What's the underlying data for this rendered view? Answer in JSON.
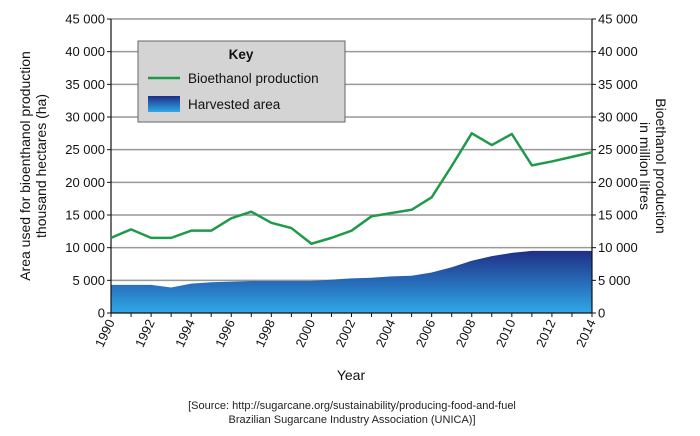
{
  "chart_data": {
    "type": "line",
    "x": [
      1990,
      1991,
      1992,
      1993,
      1994,
      1995,
      1996,
      1997,
      1998,
      1999,
      2000,
      2001,
      2002,
      2003,
      2004,
      2005,
      2006,
      2007,
      2008,
      2009,
      2010,
      2011,
      2012,
      2013,
      2014
    ],
    "xticks": [
      "1990",
      "1992",
      "1994",
      "1996",
      "1998",
      "2000",
      "2002",
      "2004",
      "2006",
      "2008",
      "2010",
      "2012",
      "2014"
    ],
    "yticks": [
      "0",
      "5000",
      "10000",
      "15000",
      "20000",
      "25000",
      "30000",
      "35000",
      "40000",
      "45000"
    ],
    "ylim": [
      0,
      45000
    ],
    "xlim": [
      1990,
      2014
    ],
    "xlabel": "Year",
    "ylabel_left": [
      "Area used for bioenthanol production",
      "thousand hectares (ha)"
    ],
    "ylabel_right": [
      "Bioethanol production",
      "in million litres"
    ],
    "grid": "horizontal",
    "legend": {
      "title": "Key",
      "placement": "top-left",
      "entries": [
        "Bioethanol production",
        "Harvested area"
      ]
    },
    "colors": {
      "line": "#1f9a4a",
      "area_top": "#1f2f86",
      "area_bottom": "#2fa8e8",
      "grid": "#999999",
      "legend_bg": "#d4d4d4"
    },
    "series": [
      {
        "name": "Bioethanol production",
        "kind": "line",
        "values": [
          11500,
          12800,
          11500,
          11500,
          12600,
          12600,
          14500,
          15500,
          13800,
          13000,
          10600,
          11500,
          12600,
          14800,
          15300,
          15800,
          17700,
          22500,
          27500,
          25700,
          27400,
          22600,
          23200,
          23900,
          24600
        ]
      },
      {
        "name": "Harvested area",
        "kind": "area",
        "values": [
          4300,
          4300,
          4300,
          3900,
          4500,
          4700,
          4800,
          4900,
          4900,
          4900,
          4900,
          5100,
          5300,
          5400,
          5600,
          5700,
          6200,
          7000,
          8000,
          8700,
          9200,
          9500,
          9500,
          9500,
          9500
        ]
      }
    ],
    "source": [
      "[Source: http://sugarcane.org/sustainability/producing-food-and-fuel",
      "Brazilian Sugarcane Industry Association (UNICA)]"
    ]
  }
}
